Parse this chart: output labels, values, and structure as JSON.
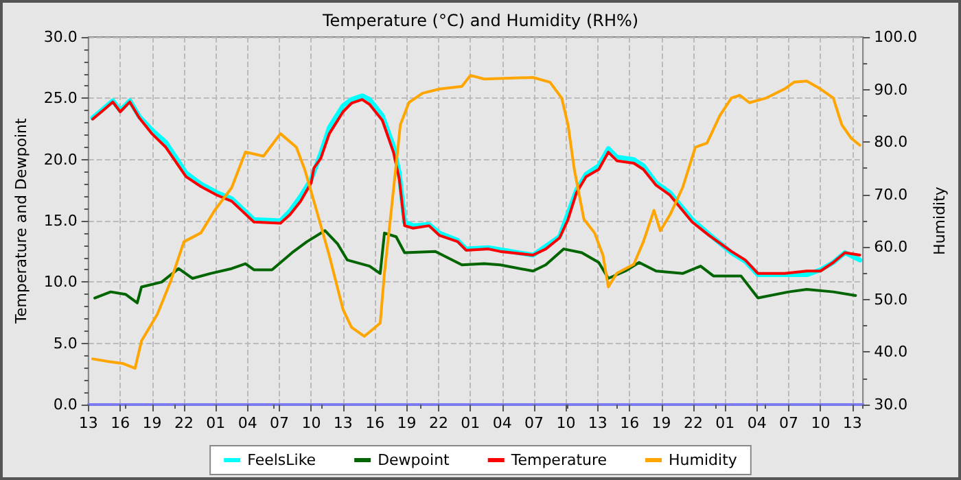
{
  "chart_data": {
    "type": "line",
    "title": "Temperature (°C) and Humidity (RH%)",
    "ylabel": "Temperature and Dewpoint",
    "y2label": "Humidity",
    "xlim": [
      "--01-01T13:00",
      "--01-04T14:00"
    ],
    "xticks": [
      {
        "value": "--01-01T13:00",
        "label": "13"
      },
      {
        "value": "--01-01T16:00",
        "label": "16"
      },
      {
        "value": "--01-01T19:00",
        "label": "19"
      },
      {
        "value": "--01-01T22:00",
        "label": "22"
      },
      {
        "value": "--01-02T01:00",
        "label": "01"
      },
      {
        "value": "--01-02T04:00",
        "label": "04"
      },
      {
        "value": "--01-02T07:00",
        "label": "07"
      },
      {
        "value": "--01-02T10:00",
        "label": "10"
      },
      {
        "value": "--01-02T13:00",
        "label": "13"
      },
      {
        "value": "--01-02T16:00",
        "label": "16"
      },
      {
        "value": "--01-02T19:00",
        "label": "19"
      },
      {
        "value": "--01-02T22:00",
        "label": "22"
      },
      {
        "value": "--01-03T01:00",
        "label": "01"
      },
      {
        "value": "--01-03T04:00",
        "label": "04"
      },
      {
        "value": "--01-03T07:00",
        "label": "07"
      },
      {
        "value": "--01-03T10:00",
        "label": "10"
      },
      {
        "value": "--01-03T13:00",
        "label": "13"
      },
      {
        "value": "--01-03T16:00",
        "label": "16"
      },
      {
        "value": "--01-03T19:00",
        "label": "19"
      },
      {
        "value": "--01-03T22:00",
        "label": "22"
      },
      {
        "value": "--01-04T01:00",
        "label": "01"
      },
      {
        "value": "--01-04T04:00",
        "label": "04"
      },
      {
        "value": "--01-04T07:00",
        "label": "07"
      },
      {
        "value": "--01-04T10:00",
        "label": "10"
      },
      {
        "value": "--01-04T13:00",
        "label": "13"
      }
    ],
    "ylim": [
      0,
      30
    ],
    "yticks": [
      {
        "value": 0,
        "label": "0.0"
      },
      {
        "value": 5,
        "label": "5.0"
      },
      {
        "value": 10,
        "label": "10.0"
      },
      {
        "value": 15,
        "label": "15.0"
      },
      {
        "value": 20,
        "label": "20.0"
      },
      {
        "value": 25,
        "label": "25.0"
      },
      {
        "value": 30,
        "label": "30.0"
      }
    ],
    "y2lim": [
      30,
      100
    ],
    "y2ticks": [
      {
        "value": 30,
        "label": "30.0"
      },
      {
        "value": 40,
        "label": "40.0"
      },
      {
        "value": 50,
        "label": "50.0"
      },
      {
        "value": 60,
        "label": "60.0"
      },
      {
        "value": 70,
        "label": "70.0"
      },
      {
        "value": 80,
        "label": "80.0"
      },
      {
        "value": 90,
        "label": "90.0"
      },
      {
        "value": 100,
        "label": "100.0"
      }
    ],
    "grid": true,
    "legend": "bottom",
    "marker": "none",
    "line_style": "solid",
    "series": [
      {
        "name": "FeelsLike",
        "color": "#00ffff",
        "x": [
          "--01-01T13:24",
          "--01-01T14:30",
          "--01-01T15:18",
          "--01-01T16:00",
          "--01-01T16:54",
          "--01-01T17:48",
          "--01-01T19:00",
          "--01-01T20:18",
          "--01-01T22:12",
          "--01-01T23:36",
          "--01-02T01:06",
          "--01-02T02:30",
          "--01-02T04:36",
          "--01-02T07:06",
          "--01-02T08:00",
          "--01-02T09:00",
          "--01-02T10:00",
          "--01-02T10:54",
          "--01-02T11:42",
          "--01-02T13:00",
          "--01-02T13:48",
          "--01-02T14:48",
          "--01-02T15:30",
          "--01-02T16:42",
          "--01-02T17:45",
          "--01-02T18:18",
          "--01-02T18:48",
          "--01-02T19:36",
          "--01-02T21:06",
          "--01-02T22:06",
          "--01-02T23:48",
          "--01-03T00:36",
          "--01-03T02:42",
          "--01-03T06:54",
          "--01-03T09:24",
          "--01-03T11:00",
          "--01-03T11:54",
          "--01-03T13:06",
          "--01-03T14:00",
          "--01-03T14:48",
          "--01-03T16:24",
          "--01-03T17:18",
          "--01-03T18:30",
          "--01-03T19:48",
          "--01-03T21:54",
          "--01-03T23:30",
          "--01-04T01:36",
          "--01-04T02:54",
          "--01-04T04:06",
          "--01-04T06:36",
          "--01-04T08:42",
          "--01-04T10:00",
          "--01-04T11:12",
          "--01-04T12:18",
          "--01-04T13:42"
        ],
        "values": [
          23.4,
          24.2,
          24.8,
          24.0,
          24.8,
          23.5,
          22.4,
          21.4,
          18.9,
          18.0,
          17.3,
          16.8,
          15.1,
          15.0,
          15.8,
          17.0,
          18.4,
          20.5,
          22.6,
          24.4,
          24.9,
          25.2,
          24.9,
          23.6,
          21.1,
          18.9,
          14.9,
          14.6,
          14.7,
          14.0,
          13.4,
          12.7,
          12.8,
          12.2,
          13.7,
          17.5,
          18.8,
          19.5,
          20.9,
          20.2,
          20.0,
          19.5,
          18.1,
          17.3,
          15.1,
          13.9,
          12.4,
          11.7,
          10.6,
          10.6,
          10.6,
          11.0,
          11.6,
          12.4,
          11.8
        ]
      },
      {
        "name": "Dewpoint",
        "color": "#006400",
        "x": [
          "--01-01T13:36",
          "--01-01T15:06",
          "--01-01T16:30",
          "--01-01T17:36",
          "--01-01T18:00",
          "--01-01T19:54",
          "--01-01T21:30",
          "--01-01T22:48",
          "--01-02T00:30",
          "--01-02T02:30",
          "--01-02T03:48",
          "--01-02T04:36",
          "--01-02T06:18",
          "--01-02T08:12",
          "--01-02T09:36",
          "--01-02T11:18",
          "--01-02T12:30",
          "--01-02T13:24",
          "--01-02T15:30",
          "--01-02T16:30",
          "--01-02T16:54",
          "--01-02T18:00",
          "--01-02T18:48",
          "--01-02T21:42",
          "--01-03T00:12",
          "--01-03T02:18",
          "--01-03T03:48",
          "--01-03T06:54",
          "--01-03T08:06",
          "--01-03T09:48",
          "--01-03T11:30",
          "--01-03T13:06",
          "--01-03T14:00",
          "--01-03T15:36",
          "--01-03T16:54",
          "--01-03T18:30",
          "--01-03T21:00",
          "--01-03T22:42",
          "--01-03T23:54",
          "--01-04T02:30",
          "--01-04T04:06",
          "--01-04T07:00",
          "--01-04T08:42",
          "--01-04T11:12",
          "--01-04T13:18"
        ],
        "values": [
          8.7,
          9.2,
          9.0,
          8.3,
          9.6,
          10.0,
          11.1,
          10.3,
          10.7,
          11.1,
          11.5,
          11.0,
          11.0,
          12.4,
          13.3,
          14.2,
          13.1,
          11.8,
          11.3,
          10.7,
          14.0,
          13.7,
          12.4,
          12.5,
          11.4,
          11.5,
          11.4,
          10.9,
          11.4,
          12.7,
          12.4,
          11.6,
          10.3,
          10.9,
          11.6,
          10.9,
          10.7,
          11.3,
          10.5,
          10.5,
          8.7,
          9.2,
          9.4,
          9.2,
          8.9
        ]
      },
      {
        "name": "Temperature",
        "color": "#ff0000",
        "x": [
          "--01-01T13:24",
          "--01-01T14:30",
          "--01-01T15:18",
          "--01-01T16:00",
          "--01-01T16:54",
          "--01-01T17:48",
          "--01-01T19:00",
          "--01-01T20:18",
          "--01-01T22:12",
          "--01-01T23:36",
          "--01-02T01:06",
          "--01-02T02:30",
          "--01-02T04:36",
          "--01-02T07:06",
          "--01-02T08:00",
          "--01-02T09:00",
          "--01-02T10:00",
          "--01-02T10:15",
          "--01-02T10:54",
          "--01-02T11:42",
          "--01-02T13:00",
          "--01-02T13:48",
          "--01-02T14:48",
          "--01-02T15:30",
          "--01-02T16:42",
          "--01-02T17:45",
          "--01-02T18:18",
          "--01-02T18:48",
          "--01-02T19:36",
          "--01-02T21:06",
          "--01-02T22:06",
          "--01-02T23:48",
          "--01-03T00:36",
          "--01-03T02:42",
          "--01-03T03:48",
          "--01-03T06:54",
          "--01-03T08:06",
          "--01-03T09:24",
          "--01-03T10:12",
          "--01-03T11:00",
          "--01-03T11:54",
          "--01-03T13:06",
          "--01-03T14:00",
          "--01-03T14:48",
          "--01-03T16:24",
          "--01-03T17:18",
          "--01-03T18:30",
          "--01-03T19:48",
          "--01-03T21:54",
          "--01-03T23:30",
          "--01-04T01:36",
          "--01-04T02:54",
          "--01-04T04:06",
          "--01-04T06:36",
          "--01-04T08:42",
          "--01-04T10:00",
          "--01-04T11:12",
          "--01-04T12:18",
          "--01-04T13:42"
        ],
        "values": [
          23.3,
          24.1,
          24.7,
          23.9,
          24.7,
          23.4,
          22.1,
          21.0,
          18.6,
          17.8,
          17.1,
          16.6,
          14.9,
          14.8,
          15.5,
          16.6,
          18.1,
          19.3,
          20.1,
          22.1,
          23.9,
          24.6,
          24.9,
          24.5,
          23.2,
          20.6,
          18.4,
          14.6,
          14.4,
          14.6,
          13.8,
          13.3,
          12.6,
          12.7,
          12.5,
          12.2,
          12.7,
          13.6,
          15.1,
          17.3,
          18.6,
          19.2,
          20.6,
          19.9,
          19.7,
          19.2,
          17.9,
          17.1,
          14.9,
          13.8,
          12.5,
          11.8,
          10.7,
          10.7,
          10.9,
          10.9,
          11.6,
          12.4,
          12.2
        ]
      },
      {
        "name": "Humidity",
        "color": "#ffa500",
        "axis": "y2",
        "x": [
          "--01-01T13:24",
          "--01-01T14:54",
          "--01-01T16:18",
          "--01-01T17:24",
          "--01-01T18:00",
          "--01-01T19:30",
          "--01-01T20:42",
          "--01-01T22:00",
          "--01-01T23:36",
          "--01-02T00:54",
          "--01-02T02:30",
          "--01-02T03:48",
          "--01-02T05:30",
          "--01-02T07:06",
          "--01-02T08:36",
          "--01-02T09:24",
          "--01-02T10:30",
          "--01-02T11:42",
          "--01-02T13:00",
          "--01-02T13:48",
          "--01-02T15:00",
          "--01-02T16:30",
          "--01-02T16:54",
          "--01-02T17:30",
          "--01-02T18:24",
          "--01-02T19:12",
          "--01-02T20:30",
          "--01-02T22:06",
          "--01-03T00:12",
          "--01-03T01:00",
          "--01-03T02:18",
          "--01-03T06:54",
          "--01-03T08:30",
          "--01-03T09:36",
          "--01-03T10:12",
          "--01-03T10:48",
          "--01-03T11:42",
          "--01-03T12:42",
          "--01-03T13:30",
          "--01-03T14:00",
          "--01-03T14:48",
          "--01-03T16:24",
          "--01-03T17:18",
          "--01-03T18:18",
          "--01-03T18:54",
          "--01-03T19:48",
          "--01-03T21:00",
          "--01-03T22:12",
          "--01-03T23:18",
          "--01-04T00:30",
          "--01-04T01:36",
          "--01-04T02:24",
          "--01-04T03:18",
          "--01-04T04:54",
          "--01-04T06:36",
          "--01-04T07:30",
          "--01-04T08:42",
          "--01-04T10:00",
          "--01-04T11:12",
          "--01-04T12:00",
          "--01-04T12:54",
          "--01-04T13:42"
        ],
        "values": [
          38.7,
          38.2,
          37.8,
          36.9,
          42.1,
          47.2,
          53.2,
          61.0,
          62.7,
          67.0,
          71.3,
          78.1,
          77.3,
          81.6,
          79.0,
          74.7,
          67.0,
          58.4,
          48.1,
          44.7,
          43.0,
          45.5,
          55.0,
          66.1,
          83.3,
          87.5,
          89.3,
          90.1,
          90.6,
          92.7,
          92.0,
          92.3,
          91.4,
          88.4,
          83.3,
          74.7,
          65.3,
          62.7,
          58.4,
          52.4,
          55.0,
          56.7,
          61.0,
          67.0,
          63.1,
          66.1,
          71.3,
          79.0,
          79.8,
          85.0,
          88.4,
          88.9,
          87.5,
          88.4,
          90.1,
          91.4,
          91.6,
          90.1,
          88.4,
          83.3,
          80.7,
          79.4
        ]
      }
    ]
  }
}
